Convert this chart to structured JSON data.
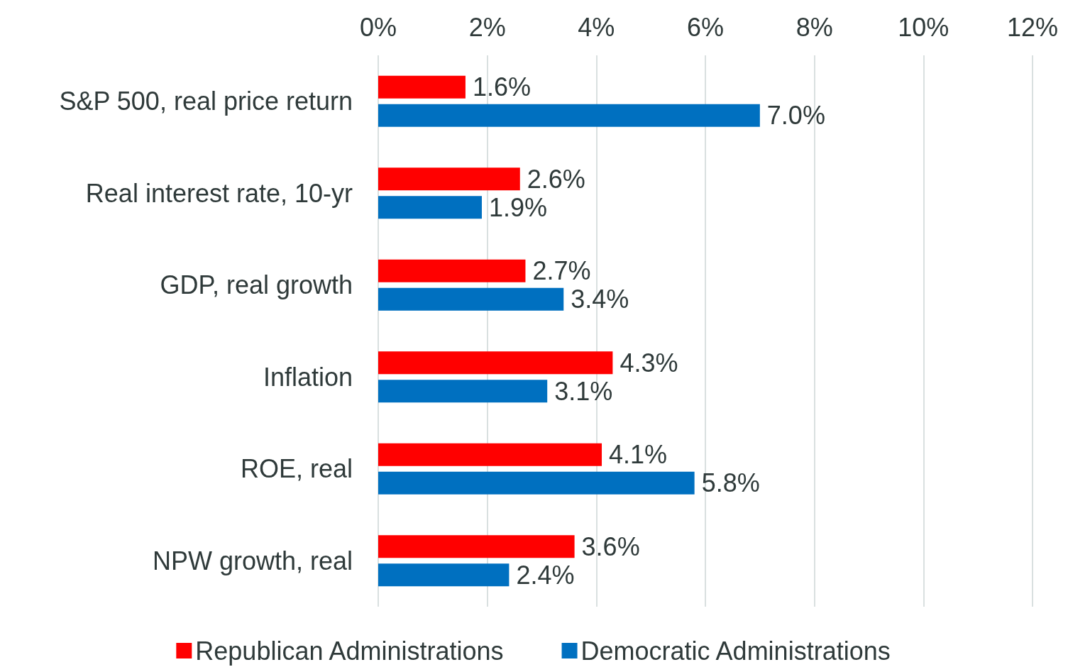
{
  "chart_data": {
    "type": "bar",
    "orientation": "horizontal",
    "categories": [
      "S&P 500, real price return",
      "Real interest rate, 10-yr",
      "GDP, real growth",
      "Inflation",
      "ROE, real",
      "NPW growth, real"
    ],
    "series": [
      {
        "name": "Republican Administrations",
        "color": "#ff0000",
        "values": [
          1.6,
          2.6,
          2.7,
          4.3,
          4.1,
          3.6
        ],
        "value_labels": [
          "1.6%",
          "2.6%",
          "2.7%",
          "4.3%",
          "4.1%",
          "3.6%"
        ]
      },
      {
        "name": "Democratic Administrations",
        "color": "#0070c0",
        "values": [
          7.0,
          1.9,
          3.4,
          3.1,
          5.8,
          2.4
        ],
        "value_labels": [
          "7.0%",
          "1.9%",
          "3.4%",
          "3.1%",
          "5.8%",
          "2.4%"
        ]
      }
    ],
    "xlim": [
      0,
      12
    ],
    "xticks": [
      {
        "value": 0,
        "label": "0%"
      },
      {
        "value": 2,
        "label": "2%"
      },
      {
        "value": 4,
        "label": "4%"
      },
      {
        "value": 6,
        "label": "6%"
      },
      {
        "value": 8,
        "label": "8%"
      },
      {
        "value": 10,
        "label": "10%"
      },
      {
        "value": 12,
        "label": "12%"
      }
    ],
    "grid": "x",
    "legend": "bottom"
  }
}
